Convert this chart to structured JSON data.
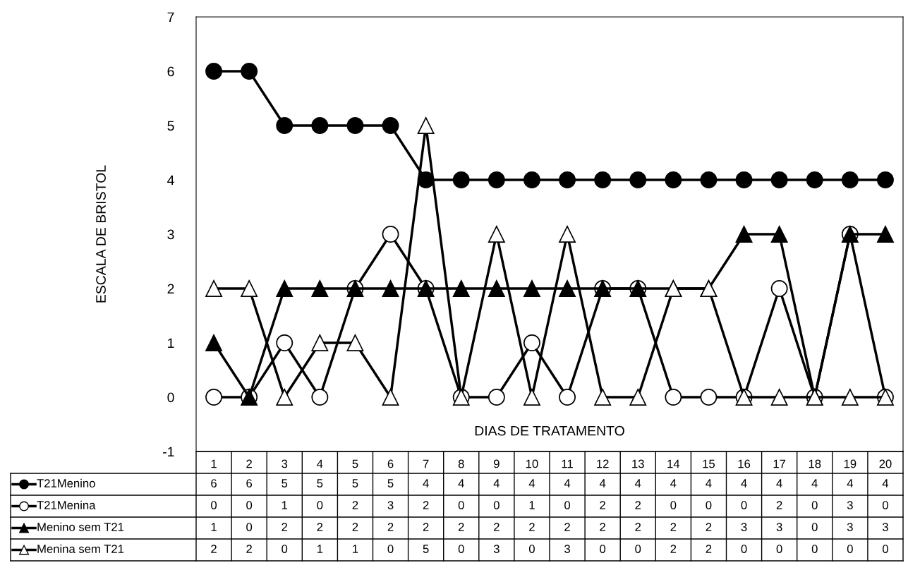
{
  "chart_data": {
    "type": "line",
    "xlabel": "DIAS DE TRATAMENTO",
    "ylabel": "ESCALA DE BRISTOL",
    "categories": [
      "1",
      "2",
      "3",
      "4",
      "5",
      "6",
      "7",
      "8",
      "9",
      "10",
      "11",
      "12",
      "13",
      "14",
      "15",
      "16",
      "17",
      "18",
      "19",
      "20"
    ],
    "series": [
      {
        "name": "T21Menino",
        "color": "#000000",
        "marker": "circle",
        "values": [
          6,
          6,
          5,
          5,
          5,
          5,
          4,
          4,
          4,
          4,
          4,
          4,
          4,
          4,
          4,
          4,
          4,
          4,
          4,
          4
        ]
      },
      {
        "name": "T21Menina",
        "color": "#000000",
        "marker": "circle",
        "values": [
          0,
          0,
          1,
          0,
          2,
          3,
          2,
          0,
          0,
          1,
          0,
          2,
          2,
          0,
          0,
          0,
          2,
          0,
          3,
          0
        ]
      },
      {
        "name": "Menino sem T21",
        "color": "#000000",
        "marker": "triangle",
        "values": [
          1,
          0,
          2,
          2,
          2,
          2,
          2,
          2,
          2,
          2,
          2,
          2,
          2,
          2,
          2,
          3,
          3,
          0,
          3,
          3
        ]
      },
      {
        "name": "Menina sem T21",
        "color": "#000000",
        "marker": "triangle",
        "values": [
          2,
          2,
          0,
          1,
          1,
          0,
          5,
          0,
          3,
          0,
          3,
          0,
          0,
          2,
          2,
          0,
          0,
          0,
          0,
          0
        ]
      }
    ],
    "ylim": [
      -1,
      7
    ],
    "yticks": [
      -1,
      0,
      1,
      2,
      3,
      4,
      5,
      6,
      7
    ],
    "grid": false,
    "legend": "bottom",
    "data_labels": true,
    "line_style": "solid"
  }
}
